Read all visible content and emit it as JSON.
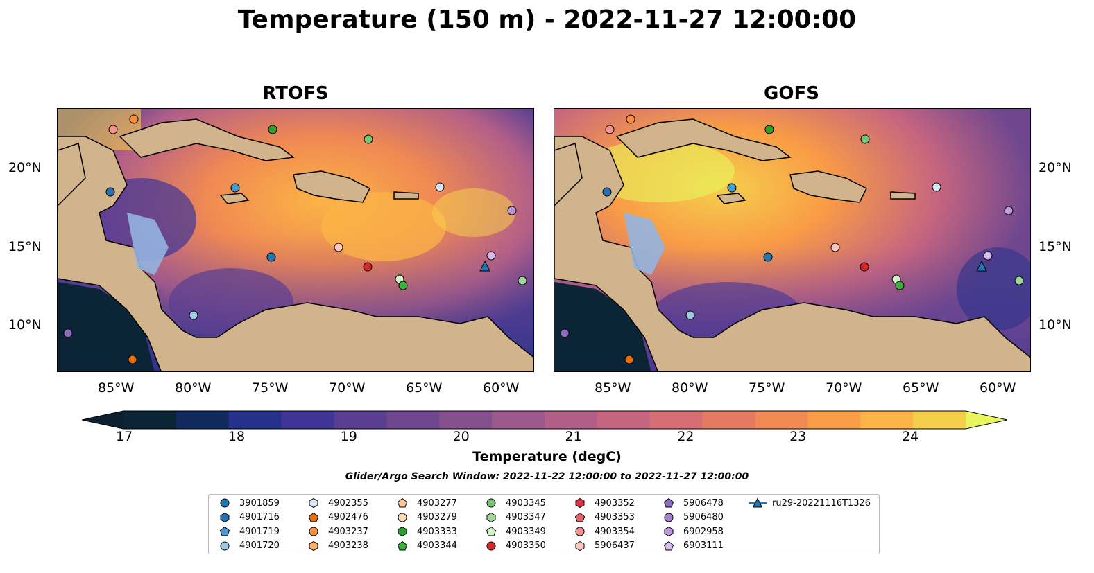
{
  "title": "Temperature (150 m) - 2022-11-27 12:00:00",
  "panels": [
    {
      "title": "RTOFS"
    },
    {
      "title": "GOFS"
    }
  ],
  "lon_ticks": [
    "85°W",
    "80°W",
    "75°W",
    "70°W",
    "65°W",
    "60°W"
  ],
  "lat_ticks": [
    "20°N",
    "15°N",
    "10°N"
  ],
  "colorbar": {
    "label": "Temperature (degC)",
    "ticks": [
      "17",
      "18",
      "19",
      "20",
      "21",
      "22",
      "23",
      "24"
    ],
    "min": 17.0,
    "max": 24.5,
    "step": 0.5,
    "colors": [
      "#0b2537",
      "#102a5e",
      "#25318a",
      "#403596",
      "#593e92",
      "#6f478f",
      "#86508f",
      "#9c5a8c",
      "#b25f88",
      "#c56580",
      "#d66e74",
      "#e57a63",
      "#f08953",
      "#f99c46",
      "#fbb445",
      "#f5cf4c"
    ],
    "over_color": "#e8f55c",
    "under_color": "#0b2030"
  },
  "search_window": "Glider/Argo Search Window: 2022-11-22 12:00:00 to 2022-11-27 12:00:00",
  "legend": [
    {
      "label": "3901859",
      "marker": "circle",
      "color": "#1f77b4"
    },
    {
      "label": "4901716",
      "marker": "hexagon",
      "color": "#2a6fb0"
    },
    {
      "label": "4901719",
      "marker": "pentagon",
      "color": "#4a9ad1"
    },
    {
      "label": "4901720",
      "marker": "circle",
      "color": "#9ecae1"
    },
    {
      "label": "4902355",
      "marker": "hexagon",
      "color": "#d6e7f5"
    },
    {
      "label": "4902476",
      "marker": "pentagon",
      "color": "#e8700e"
    },
    {
      "label": "4903237",
      "marker": "circle",
      "color": "#fd8d3c"
    },
    {
      "label": "4903238",
      "marker": "hexagon",
      "color": "#fdae6b"
    },
    {
      "label": "4903277",
      "marker": "pentagon",
      "color": "#fdc899"
    },
    {
      "label": "4903279",
      "marker": "circle",
      "color": "#fdd9b8"
    },
    {
      "label": "4903333",
      "marker": "hexagon",
      "color": "#2ca02c"
    },
    {
      "label": "4903344",
      "marker": "pentagon",
      "color": "#3cb03c"
    },
    {
      "label": "4903345",
      "marker": "circle",
      "color": "#74c476"
    },
    {
      "label": "4903347",
      "marker": "hexagon",
      "color": "#a1d99b"
    },
    {
      "label": "4903349",
      "marker": "pentagon",
      "color": "#d0f0c8"
    },
    {
      "label": "4903350",
      "marker": "circle",
      "color": "#d62728"
    },
    {
      "label": "4903352",
      "marker": "hexagon",
      "color": "#de2d46"
    },
    {
      "label": "4903353",
      "marker": "pentagon",
      "color": "#e8606a"
    },
    {
      "label": "4903354",
      "marker": "circle",
      "color": "#f59090"
    },
    {
      "label": "5906437",
      "marker": "hexagon",
      "color": "#fcc5c0"
    },
    {
      "label": "5906478",
      "marker": "pentagon",
      "color": "#8e6bbf"
    },
    {
      "label": "5906480",
      "marker": "circle",
      "color": "#a77fd0"
    },
    {
      "label": "6902958",
      "marker": "hexagon",
      "color": "#bc98dd"
    },
    {
      "label": "6903111",
      "marker": "pentagon",
      "color": "#d4b9ea"
    },
    {
      "label": "ru29-20221116T1326",
      "marker": "triangle-line",
      "color": "#1f77b4"
    }
  ]
}
